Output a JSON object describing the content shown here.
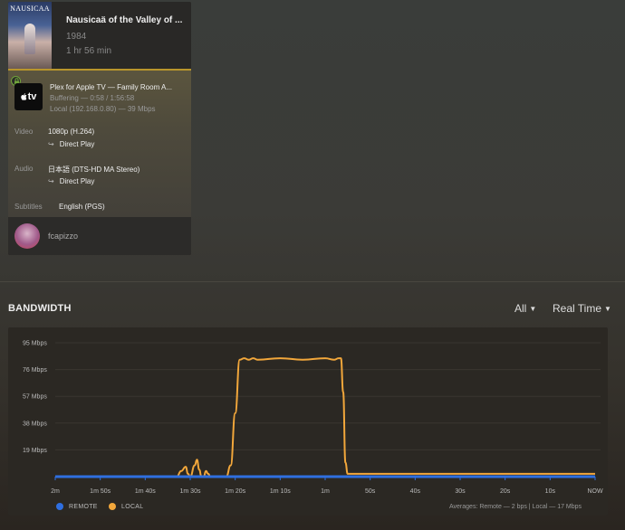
{
  "session": {
    "poster_title": "NAUSICAA",
    "title": "Nausicaä of the Valley of ...",
    "year": "1984",
    "duration": "1 hr 56 min",
    "player": {
      "icon": "apple-tv-icon",
      "logo_text": "tv",
      "name": "Plex for Apple TV  —  Family Room A...",
      "state": "Buffering — 0:58 / 1:56:58",
      "network": "Local (192.168.0.80) — 39 Mbps"
    },
    "video": {
      "label": "Video",
      "value": "1080p (H.264)",
      "decision": "Direct Play"
    },
    "audio": {
      "label": "Audio",
      "value": "日本語 (DTS-HD MA Stereo)",
      "decision": "Direct Play"
    },
    "subtitles": {
      "label": "Subtitles",
      "value": "English (PGS)"
    },
    "user": {
      "name": "fcapizzo"
    },
    "accent_color": "#b9962c"
  },
  "bandwidth": {
    "title": "BANDWIDTH",
    "filter": "All",
    "timeframe": "Real Time",
    "legend": [
      {
        "label": "REMOTE",
        "color": "#2f6fe0"
      },
      {
        "label": "LOCAL",
        "color": "#f2a73b"
      }
    ],
    "averages": "Averages: Remote — 2 bps | Local — 17 Mbps"
  },
  "chart_data": {
    "type": "line",
    "y_unit": "Mbps",
    "ylim": [
      0,
      95
    ],
    "yticks": [
      "95 Mbps",
      "76 Mbps",
      "57 Mbps",
      "38 Mbps",
      "19 Mbps"
    ],
    "ytick_values": [
      95,
      76,
      57,
      38,
      19
    ],
    "xticks": [
      "2m",
      "1m 50s",
      "1m 40s",
      "1m 30s",
      "1m 20s",
      "1m 10s",
      "1m",
      "50s",
      "40s",
      "30s",
      "20s",
      "10s",
      "NOW"
    ],
    "xlim": [
      -120,
      0
    ],
    "grid": true,
    "series": [
      {
        "name": "REMOTE",
        "color": "#2f6fe0",
        "x": [
          -120,
          0
        ],
        "values": [
          0,
          0
        ]
      },
      {
        "name": "LOCAL",
        "color": "#f2a73b",
        "x": [
          -120,
          -93,
          -92,
          -91,
          -90.5,
          -90,
          -89,
          -88.5,
          -88,
          -87.5,
          -87,
          -86.5,
          -86,
          -85.5,
          -85,
          -84,
          -83,
          -82,
          -81,
          -80,
          -79,
          -78,
          -77,
          -76,
          -75,
          -70,
          -65,
          -60,
          -58,
          -57,
          -56.5,
          -56,
          -55.5,
          -55,
          -54,
          -50,
          -40,
          -30,
          -20,
          -10,
          0
        ],
        "values": [
          0,
          0,
          4,
          7,
          2,
          0,
          8,
          12,
          5,
          0,
          0,
          4,
          2,
          0,
          0,
          0,
          0,
          0,
          8,
          45,
          83,
          84,
          83,
          84,
          83,
          84,
          83,
          84,
          83,
          84,
          84,
          60,
          10,
          2,
          2,
          2,
          2,
          2,
          2,
          2,
          2
        ]
      }
    ]
  }
}
